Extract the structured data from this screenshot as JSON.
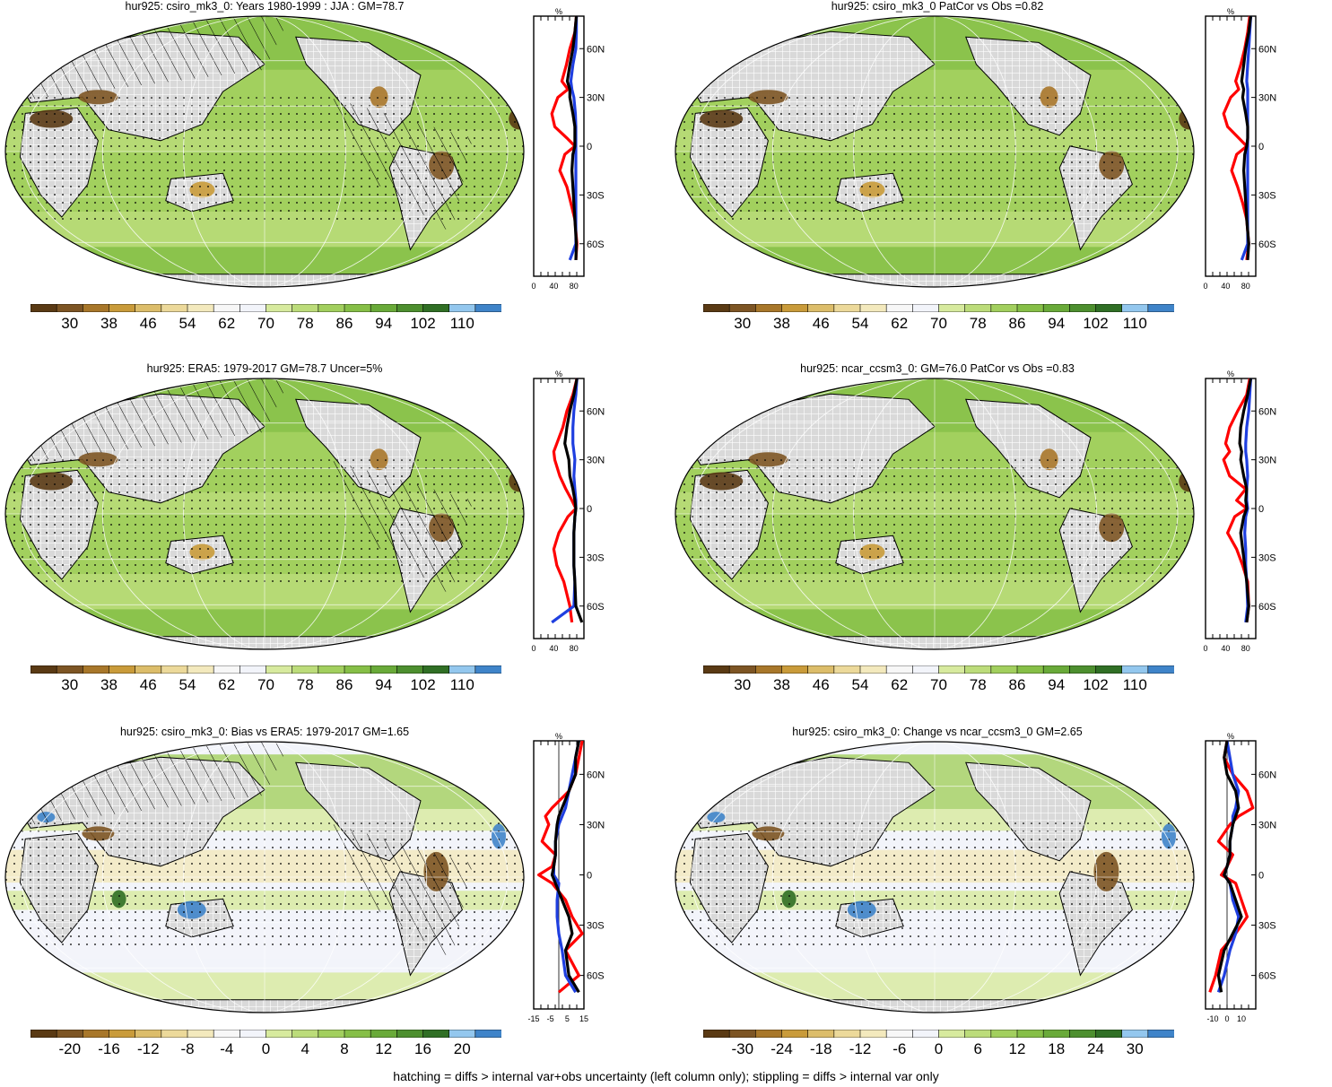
{
  "footer": "hatching = diffs > internal var+obs uncertainty (left column only); stippling = diffs > internal var only",
  "profile_axis": {
    "unit": "%",
    "lat_ticks": [
      "60N",
      "30N",
      "0",
      "30S",
      "60S"
    ]
  },
  "colors": {
    "abs_scale": [
      "#5a3a14",
      "#7d5524",
      "#a8772a",
      "#c99b3a",
      "#dcbd6a",
      "#ecd99a",
      "#f3e9bd",
      "#f7f7f7",
      "#f2f4fa",
      "#d7ea9e",
      "#bcdc7a",
      "#a2cf5e",
      "#86bf47",
      "#69aa39",
      "#4d8f2f",
      "#306f25",
      "#93c7ee",
      "#3f84c9"
    ],
    "diff_scale": [
      "#5a3a14",
      "#7d5524",
      "#a8772a",
      "#c99b3a",
      "#dcbd6a",
      "#ecd99a",
      "#f3e9bd",
      "#f7f7f7",
      "#f2f4fa",
      "#d7ea9e",
      "#bcdc7a",
      "#a2cf5e",
      "#86bf47",
      "#69aa39",
      "#4d8f2f",
      "#306f25",
      "#93c7ee",
      "#3f84c9"
    ],
    "land_mask": "#d9d9d9",
    "profile_red": "#ff0000",
    "profile_blue": "#1f3fe0",
    "profile_black": "#000000"
  },
  "panels": [
    {
      "title": "hur925: csiro_mk3_0: Years 1980-1999 : JJA : GM=78.7",
      "colorbar_labels": [
        "30",
        "38",
        "46",
        "54",
        "62",
        "70",
        "78",
        "86",
        "94",
        "102",
        "110"
      ],
      "colorbar_type": "abs",
      "profile_ticks": [
        "0",
        "40",
        "80"
      ],
      "chart_data": {
        "type": "line",
        "xlabel": "%",
        "xlim": [
          0,
          100
        ],
        "ylim": [
          -80,
          80
        ],
        "series": [
          {
            "color": "red",
            "x": [
              85,
              82,
              72,
              65,
              56,
              68,
              48,
              36,
              42,
              66,
              82,
              62,
              52,
              66,
              74,
              82,
              86,
              84
            ],
            "lat": [
              80,
              70,
              60,
              50,
              40,
              35,
              30,
              20,
              12,
              5,
              0,
              -5,
              -15,
              -25,
              -35,
              -45,
              -60,
              -70
            ]
          },
          {
            "color": "blue",
            "x": [
              85,
              85,
              84,
              78,
              74,
              76,
              80,
              83,
              84,
              84,
              84,
              84,
              84,
              84,
              84,
              84,
              84,
              72
            ],
            "lat": [
              80,
              70,
              60,
              50,
              40,
              35,
              30,
              20,
              12,
              5,
              0,
              -5,
              -15,
              -25,
              -35,
              -45,
              -60,
              -70
            ]
          },
          {
            "color": "black",
            "x": [
              85,
              82,
              78,
              72,
              67,
              72,
              72,
              78,
              82,
              82,
              82,
              78,
              76,
              78,
              80,
              82,
              85,
              84
            ],
            "lat": [
              80,
              70,
              60,
              50,
              40,
              35,
              30,
              20,
              12,
              5,
              0,
              -5,
              -15,
              -25,
              -35,
              -45,
              -60,
              -70
            ]
          }
        ]
      }
    },
    {
      "title": "hur925: csiro_mk3_0 PatCor vs Obs =0.82",
      "colorbar_labels": [
        "30",
        "38",
        "46",
        "54",
        "62",
        "70",
        "78",
        "86",
        "94",
        "102",
        "110"
      ],
      "colorbar_type": "abs",
      "profile_ticks": [
        "0",
        "40",
        "80"
      ],
      "chart_data": {
        "type": "line",
        "xlabel": "%",
        "xlim": [
          0,
          100
        ],
        "ylim": [
          -80,
          80
        ],
        "series": [
          {
            "color": "red",
            "x": [
              88,
              84,
              78,
              70,
              60,
              66,
              50,
              36,
              44,
              66,
              82,
              62,
              52,
              64,
              74,
              82,
              86,
              82
            ],
            "lat": [
              80,
              70,
              60,
              50,
              40,
              35,
              30,
              20,
              12,
              5,
              0,
              -5,
              -15,
              -25,
              -35,
              -45,
              -60,
              -70
            ]
          },
          {
            "color": "blue",
            "x": [
              90,
              88,
              86,
              84,
              82,
              84,
              84,
              84,
              84,
              84,
              84,
              84,
              84,
              84,
              84,
              84,
              84,
              72
            ],
            "lat": [
              80,
              70,
              60,
              50,
              40,
              35,
              30,
              20,
              12,
              5,
              0,
              -5,
              -15,
              -25,
              -35,
              -45,
              -60,
              -70
            ]
          },
          {
            "color": "black",
            "x": [
              90,
              86,
              80,
              76,
              72,
              76,
              74,
              80,
              84,
              84,
              82,
              78,
              76,
              78,
              80,
              82,
              86,
              84
            ],
            "lat": [
              80,
              70,
              60,
              50,
              40,
              35,
              30,
              20,
              12,
              5,
              0,
              -5,
              -15,
              -25,
              -35,
              -45,
              -60,
              -70
            ]
          }
        ]
      }
    },
    {
      "title": "hur925: ERA5: 1979-2017 GM=78.7 Uncer=5%",
      "colorbar_labels": [
        "30",
        "38",
        "46",
        "54",
        "62",
        "70",
        "78",
        "86",
        "94",
        "102",
        "110"
      ],
      "colorbar_type": "abs",
      "profile_ticks": [
        "0",
        "40",
        "80"
      ],
      "chart_data": {
        "type": "line",
        "xlabel": "%",
        "xlim": [
          0,
          100
        ],
        "ylim": [
          -80,
          80
        ],
        "series": [
          {
            "color": "red",
            "x": [
              86,
              78,
              66,
              58,
              46,
              40,
              42,
              52,
              64,
              76,
              84,
              68,
              50,
              40,
              46,
              60,
              72,
              76
            ],
            "lat": [
              80,
              70,
              60,
              50,
              40,
              35,
              30,
              20,
              12,
              5,
              0,
              -5,
              -15,
              -25,
              -35,
              -45,
              -60,
              -70
            ]
          },
          {
            "color": "blue",
            "x": [
              86,
              84,
              80,
              78,
              78,
              80,
              82,
              80,
              82,
              84,
              84,
              82,
              80,
              80,
              80,
              82,
              80,
              36
            ],
            "lat": [
              80,
              70,
              60,
              50,
              40,
              35,
              30,
              20,
              12,
              5,
              0,
              -5,
              -15,
              -25,
              -35,
              -45,
              -60,
              -70
            ]
          },
          {
            "color": "black",
            "x": [
              86,
              80,
              72,
              66,
              62,
              66,
              70,
              72,
              78,
              82,
              84,
              82,
              80,
              80,
              80,
              82,
              84,
              96
            ],
            "lat": [
              80,
              70,
              60,
              50,
              40,
              35,
              30,
              20,
              12,
              5,
              0,
              -5,
              -15,
              -25,
              -35,
              -45,
              -60,
              -70
            ]
          }
        ]
      }
    },
    {
      "title": "hur925: ncar_ccsm3_0: GM=76.0 PatCor vs Obs =0.83",
      "colorbar_labels": [
        "30",
        "38",
        "46",
        "54",
        "62",
        "70",
        "78",
        "86",
        "94",
        "102",
        "110"
      ],
      "colorbar_type": "abs",
      "profile_ticks": [
        "0",
        "40",
        "80"
      ],
      "chart_data": {
        "type": "line",
        "xlabel": "%",
        "xlim": [
          0,
          100
        ],
        "ylim": [
          -80,
          80
        ],
        "series": [
          {
            "color": "red",
            "x": [
              88,
              82,
              64,
              48,
              40,
              48,
              36,
              48,
              80,
              62,
              82,
              58,
              44,
              62,
              74,
              84,
              86,
              82
            ],
            "lat": [
              80,
              70,
              60,
              50,
              40,
              35,
              30,
              20,
              12,
              5,
              0,
              -5,
              -15,
              -25,
              -35,
              -45,
              -60,
              -70
            ]
          },
          {
            "color": "blue",
            "x": [
              90,
              88,
              86,
              82,
              80,
              80,
              82,
              84,
              82,
              82,
              84,
              80,
              78,
              80,
              80,
              82,
              84,
              80
            ],
            "lat": [
              80,
              70,
              60,
              50,
              40,
              35,
              30,
              20,
              12,
              5,
              0,
              -5,
              -15,
              -25,
              -35,
              -45,
              -60,
              -70
            ]
          },
          {
            "color": "black",
            "x": [
              90,
              84,
              76,
              70,
              68,
              72,
              70,
              76,
              82,
              80,
              82,
              76,
              70,
              74,
              78,
              82,
              86,
              82
            ],
            "lat": [
              80,
              70,
              60,
              50,
              40,
              35,
              30,
              20,
              12,
              5,
              0,
              -5,
              -15,
              -25,
              -35,
              -45,
              -60,
              -70
            ]
          }
        ]
      }
    },
    {
      "title": "hur925: csiro_mk3_0: Bias vs ERA5: 1979-2017 GM=1.65",
      "colorbar_labels": [
        "-20",
        "-16",
        "-12",
        "-8",
        "-4",
        "0",
        "4",
        "8",
        "12",
        "16",
        "20"
      ],
      "colorbar_type": "diff",
      "profile_ticks": [
        "-15",
        "-5",
        "5",
        "15"
      ],
      "chart_data": {
        "type": "line",
        "xlabel": "%",
        "xlim": [
          -15,
          15
        ],
        "ylim": [
          -80,
          80
        ],
        "series": [
          {
            "color": "red",
            "x": [
              14,
              12,
              10,
              6,
              -4,
              -8,
              -6,
              -10,
              -2,
              -4,
              -12,
              -4,
              4,
              8,
              14,
              4,
              12,
              0
            ],
            "lat": [
              80,
              70,
              60,
              50,
              40,
              35,
              30,
              20,
              12,
              5,
              0,
              -5,
              -15,
              -25,
              -35,
              -45,
              -60,
              -70
            ]
          },
          {
            "color": "blue",
            "x": [
              12,
              10,
              8,
              6,
              4,
              2,
              0,
              -2,
              -2,
              -3,
              -3,
              0,
              -1,
              -1,
              0,
              2,
              4,
              10
            ],
            "lat": [
              80,
              70,
              60,
              50,
              40,
              35,
              30,
              20,
              12,
              5,
              0,
              -5,
              -15,
              -25,
              -35,
              -45,
              -60,
              -70
            ]
          },
          {
            "color": "black",
            "x": [
              12,
              10,
              10,
              6,
              2,
              0,
              -1,
              -2,
              -2,
              -3,
              -4,
              -2,
              2,
              6,
              8,
              4,
              6,
              12
            ],
            "lat": [
              80,
              70,
              60,
              50,
              40,
              35,
              30,
              20,
              12,
              5,
              0,
              -5,
              -15,
              -25,
              -35,
              -45,
              -60,
              -70
            ]
          }
        ]
      }
    },
    {
      "title": "hur925: csiro_mk3_0: Change vs ncar_ccsm3_0 GM=2.65",
      "colorbar_labels": [
        "-30",
        "-24",
        "-18",
        "-12",
        "-6",
        "0",
        "6",
        "12",
        "18",
        "24",
        "30"
      ],
      "colorbar_type": "diff",
      "profile_ticks": [
        "-10",
        "0",
        "10"
      ],
      "chart_data": {
        "type": "line",
        "xlabel": "%",
        "xlim": [
          -15,
          20
        ],
        "ylim": [
          -80,
          80
        ],
        "series": [
          {
            "color": "red",
            "x": [
              0,
              -2,
              4,
              14,
              18,
              8,
              2,
              -6,
              4,
              0,
              -4,
              6,
              10,
              14,
              6,
              -4,
              -8,
              -12
            ],
            "lat": [
              80,
              70,
              60,
              50,
              40,
              35,
              30,
              20,
              12,
              5,
              0,
              -5,
              -15,
              -25,
              -35,
              -45,
              -60,
              -70
            ]
          },
          {
            "color": "blue",
            "x": [
              0,
              2,
              4,
              8,
              6,
              4,
              4,
              2,
              2,
              0,
              -2,
              2,
              4,
              8,
              6,
              2,
              -2,
              -6
            ],
            "lat": [
              80,
              70,
              60,
              50,
              40,
              35,
              30,
              20,
              12,
              5,
              0,
              -5,
              -15,
              -25,
              -35,
              -45,
              -60,
              -70
            ]
          },
          {
            "color": "black",
            "x": [
              0,
              -2,
              0,
              6,
              8,
              6,
              4,
              2,
              2,
              0,
              -2,
              2,
              6,
              10,
              4,
              -2,
              -6,
              -4
            ],
            "lat": [
              80,
              70,
              60,
              50,
              40,
              35,
              30,
              20,
              12,
              5,
              0,
              -5,
              -15,
              -25,
              -35,
              -45,
              -60,
              -70
            ]
          }
        ]
      }
    }
  ]
}
